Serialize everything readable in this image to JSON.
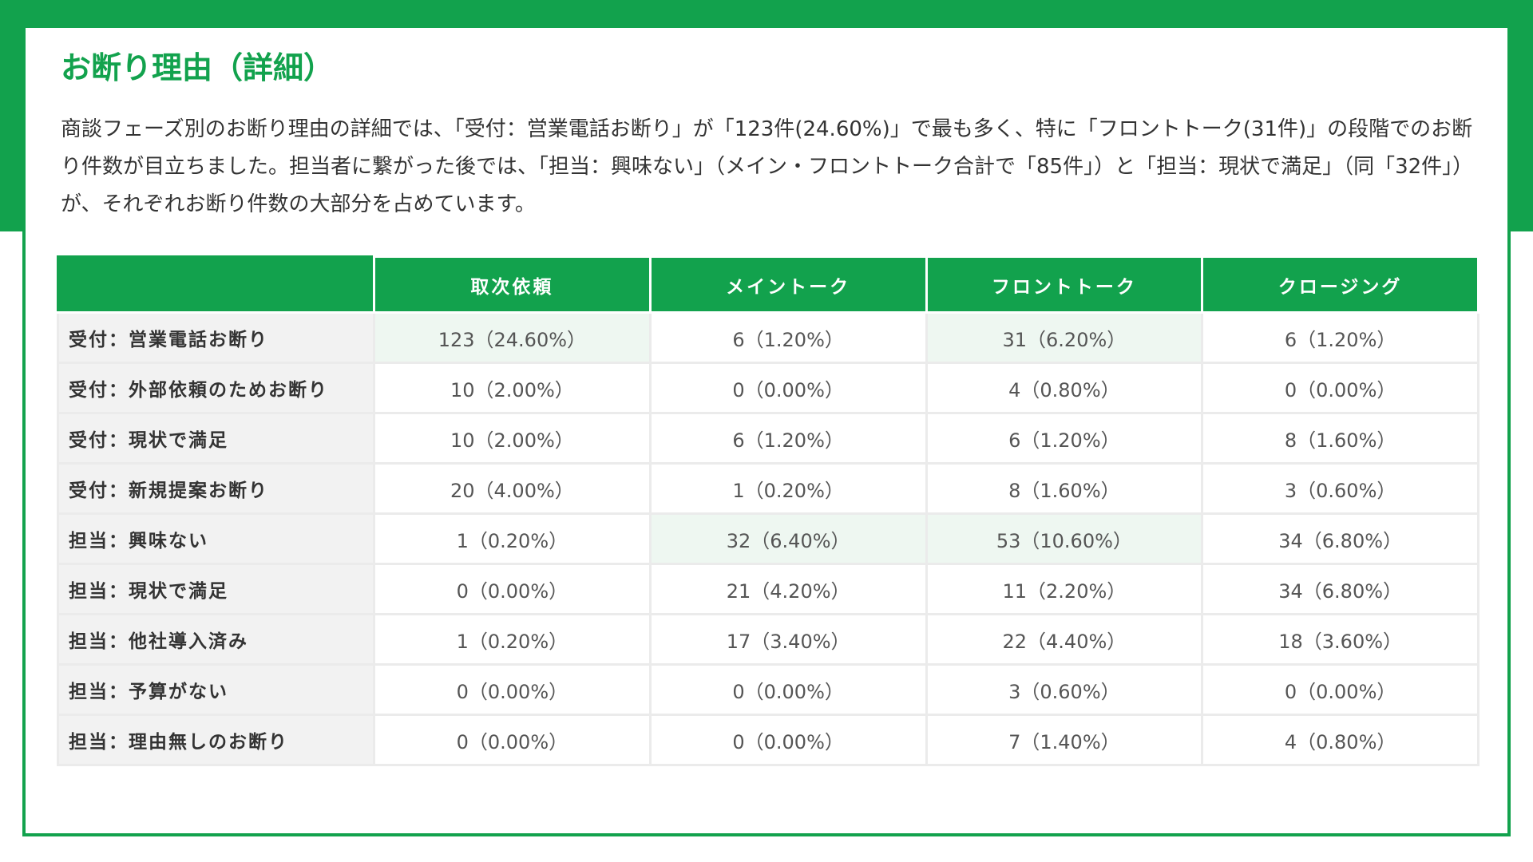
{
  "page": {
    "title": "お断り理由（詳細）",
    "description": "商談フェーズ別のお断り理由の詳細では、「受付：営業電話お断り」が「123件(24.60%)」で最も多く、特に「フロントトーク(31件)」の段階でのお断り件数が目立ちました。担当者に繋がった後では、「担当：興味ない」（メイン・フロントトーク合計で「85件」）と「担当：現状で満足」（同「32件」）が、それぞれお断り件数の大部分を占めています。"
  },
  "colors": {
    "accent": "#12a24d",
    "highlight": "#eef7f1",
    "row_header_bg": "#f2f2f2"
  },
  "table": {
    "corner": "",
    "columns": [
      "取次依頼",
      "メイントーク",
      "フロントトーク",
      "クロージング"
    ],
    "rows": [
      {
        "label": "受付：営業電話お断り",
        "cells": [
          "123（24.60%）",
          "6（1.20%）",
          "31（6.20%）",
          "6（1.20%）"
        ]
      },
      {
        "label": "受付：外部依頼のためお断り",
        "cells": [
          "10（2.00%）",
          "0（0.00%）",
          "4（0.80%）",
          "0（0.00%）"
        ]
      },
      {
        "label": "受付：現状で満足",
        "cells": [
          "10（2.00%）",
          "6（1.20%）",
          "6（1.20%）",
          "8（1.60%）"
        ]
      },
      {
        "label": "受付：新規提案お断り",
        "cells": [
          "20（4.00%）",
          "1（0.20%）",
          "8（1.60%）",
          "3（0.60%）"
        ]
      },
      {
        "label": "担当：興味ない",
        "cells": [
          "1（0.20%）",
          "32（6.40%）",
          "53（10.60%）",
          "34（6.80%）"
        ]
      },
      {
        "label": "担当：現状で満足",
        "cells": [
          "0（0.00%）",
          "21（4.20%）",
          "11（2.20%）",
          "34（6.80%）"
        ]
      },
      {
        "label": "担当：他社導入済み",
        "cells": [
          "1（0.20%）",
          "17（3.40%）",
          "22（4.40%）",
          "18（3.60%）"
        ]
      },
      {
        "label": "担当：予算がない",
        "cells": [
          "0（0.00%）",
          "0（0.00%）",
          "3（0.60%）",
          "0（0.00%）"
        ]
      },
      {
        "label": "担当：理由無しのお断り",
        "cells": [
          "0（0.00%）",
          "0（0.00%）",
          "7（1.40%）",
          "4（0.80%）"
        ]
      }
    ]
  }
}
